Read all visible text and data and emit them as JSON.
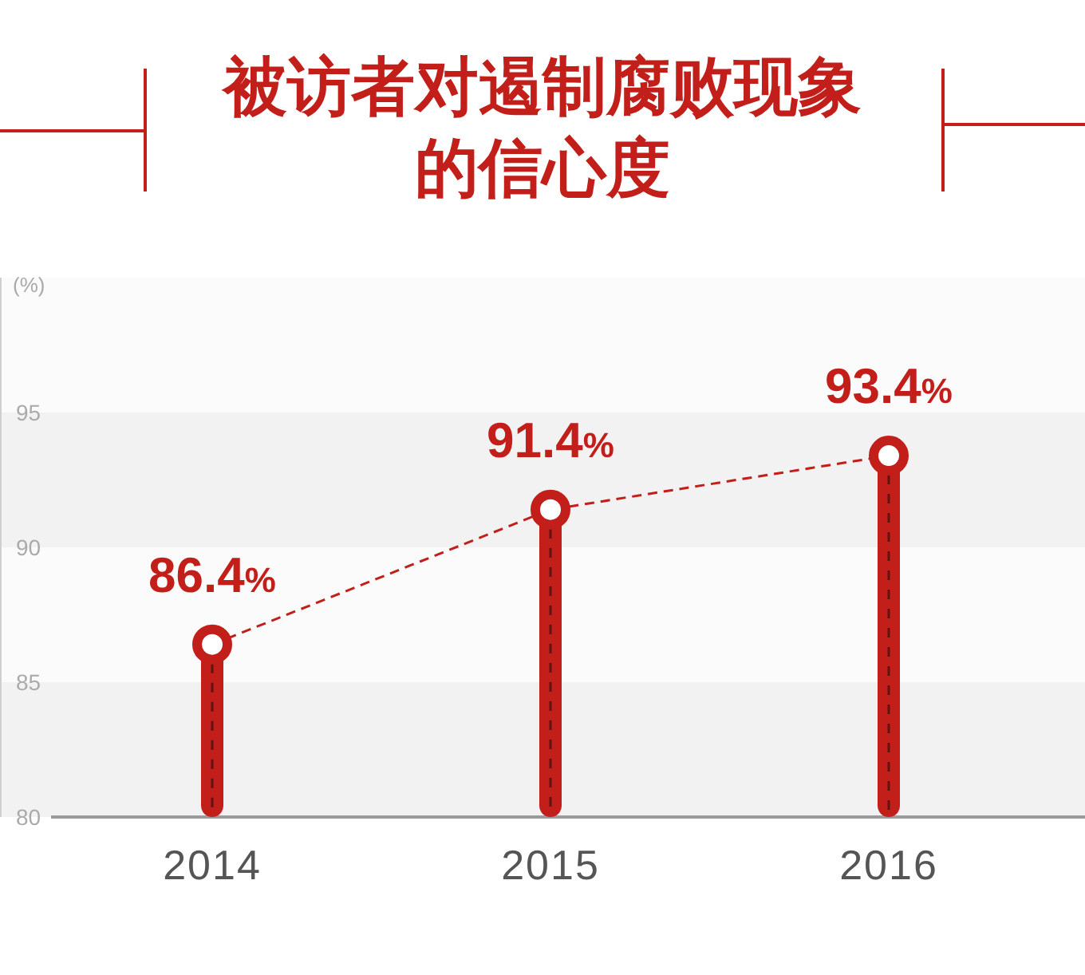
{
  "chart_data": {
    "type": "lollipop",
    "title": "被访者对遏制腐败现象的信心度",
    "ylabel": "(%)",
    "categories": [
      "2014",
      "2015",
      "2016"
    ],
    "series": [
      {
        "color": "#c21f1a",
        "values": [
          86.4,
          91.4,
          93.4
        ],
        "value_labels": [
          "86.4%",
          "91.4%",
          "93.4%"
        ]
      },
      {
        "type": "line",
        "color": "#c21f1a",
        "values": [
          86.4,
          91.4,
          93.4
        ],
        "line_style": "dashed"
      }
    ],
    "ylim": [
      80,
      100
    ],
    "yticks": [
      80,
      85,
      90,
      95
    ],
    "bands": [
      {
        "axis": "y",
        "from": 80,
        "to": 85,
        "color": "#f2f2f2"
      },
      {
        "axis": "y",
        "from": 90,
        "to": 95,
        "color": "#f2f2f2"
      }
    ]
  }
}
